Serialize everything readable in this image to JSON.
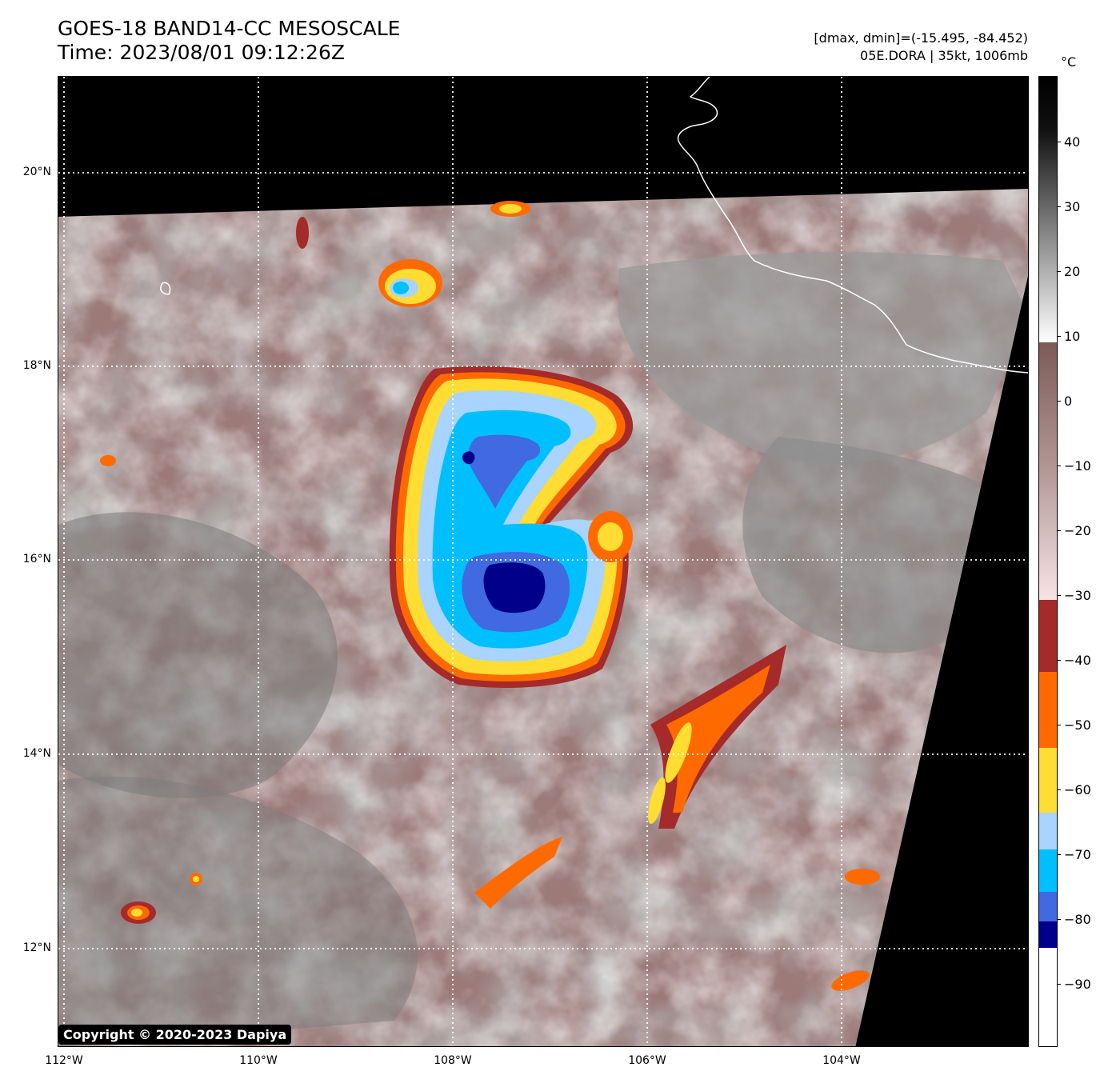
{
  "header": {
    "title_line1": "GOES-18 BAND14-CC MESOSCALE",
    "title_line2": "Time: 2023/08/01 09:12:26Z",
    "info_line1": "[dmax, dmin]=(-15.495, -84.452)",
    "info_line2": "05E.DORA | 35kt, 1006mb"
  },
  "colorbar": {
    "unit": "°C",
    "ticks": [
      "40",
      "30",
      "20",
      "10",
      "0",
      "−10",
      "−20",
      "−30",
      "−40",
      "−50",
      "−60",
      "−70",
      "−80",
      "−90"
    ],
    "range_min": -100,
    "range_max": 49,
    "colors": {
      "warm_top": "#000000",
      "gray_mid": "#808080",
      "white": "#ffffff",
      "pinkbrown_top": "#7d5a58",
      "pink_low": "#f5dcdc",
      "dark_red": "#a52a2a",
      "orange": "#ff6a00",
      "yellow": "#ffdd33",
      "light_blue": "#a8d4ff",
      "cyan": "#00bfff",
      "royal_blue": "#4169e1",
      "navy": "#00008b",
      "coldest": "#ffffff"
    }
  },
  "axes": {
    "lat_labels": [
      "20°N",
      "18°N",
      "16°N",
      "14°N",
      "12°N"
    ],
    "lon_labels": [
      "112°W",
      "110°W",
      "108°W",
      "106°W",
      "104°W"
    ]
  },
  "storm": {
    "name": "05E.DORA",
    "center_lat": 15.8,
    "center_lon": -107.2
  },
  "copyright": "Copyright © 2020-2023 Dapiya"
}
